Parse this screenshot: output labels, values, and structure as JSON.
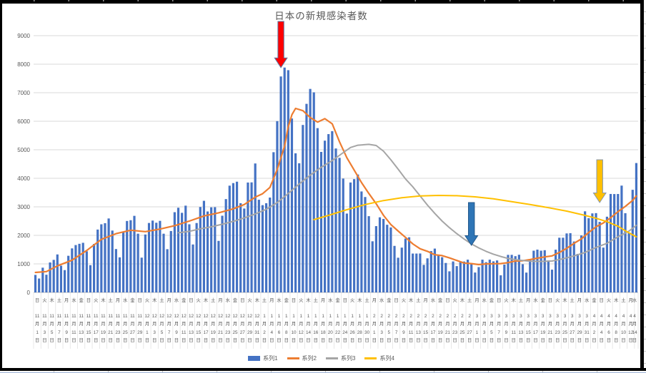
{
  "frame": {
    "border_color": "#000000",
    "bottom_rule_color": "#9db3d6"
  },
  "chart_data": {
    "type": "combo",
    "title": "日本の新規感染者数",
    "x": {
      "n_days": 165,
      "start": "2020-11-01",
      "end": "2021-04-14",
      "tick_every_days": 2,
      "month_suffix": "月",
      "day_suffix": "日",
      "tick_labels": [
        [
          "日",
          11,
          1
        ],
        [
          "火",
          11,
          3
        ],
        [
          "木",
          11,
          5
        ],
        [
          "土",
          11,
          7
        ],
        [
          "月",
          11,
          9
        ],
        [
          "水",
          11,
          11
        ],
        [
          "金",
          11,
          13
        ],
        [
          "日",
          11,
          15
        ],
        [
          "火",
          11,
          17
        ],
        [
          "木",
          11,
          19
        ],
        [
          "土",
          11,
          21
        ],
        [
          "月",
          11,
          23
        ],
        [
          "水",
          11,
          25
        ],
        [
          "金",
          11,
          27
        ],
        [
          "日",
          11,
          29
        ],
        [
          "火",
          12,
          1
        ],
        [
          "木",
          12,
          3
        ],
        [
          "土",
          12,
          5
        ],
        [
          "月",
          12,
          7
        ],
        [
          "水",
          12,
          9
        ],
        [
          "金",
          12,
          11
        ],
        [
          "日",
          12,
          13
        ],
        [
          "火",
          12,
          15
        ],
        [
          "木",
          12,
          17
        ],
        [
          "土",
          12,
          19
        ],
        [
          "月",
          12,
          21
        ],
        [
          "水",
          12,
          23
        ],
        [
          "金",
          12,
          25
        ],
        [
          "日",
          12,
          27
        ],
        [
          "火",
          12,
          29
        ],
        [
          "木",
          12,
          31
        ],
        [
          "土",
          1,
          2
        ],
        [
          "月",
          1,
          4
        ],
        [
          "水",
          1,
          6
        ],
        [
          "金",
          1,
          8
        ],
        [
          "日",
          1,
          10
        ],
        [
          "火",
          1,
          12
        ],
        [
          "木",
          1,
          14
        ],
        [
          "土",
          1,
          16
        ],
        [
          "月",
          1,
          18
        ],
        [
          "水",
          1,
          20
        ],
        [
          "金",
          1,
          22
        ],
        [
          "日",
          1,
          24
        ],
        [
          "火",
          1,
          26
        ],
        [
          "木",
          1,
          28
        ],
        [
          "土",
          1,
          30
        ],
        [
          "月",
          2,
          1
        ],
        [
          "水",
          2,
          3
        ],
        [
          "金",
          2,
          5
        ],
        [
          "日",
          2,
          7
        ],
        [
          "火",
          2,
          9
        ],
        [
          "木",
          2,
          11
        ],
        [
          "土",
          2,
          13
        ],
        [
          "月",
          2,
          15
        ],
        [
          "水",
          2,
          17
        ],
        [
          "金",
          2,
          19
        ],
        [
          "日",
          2,
          21
        ],
        [
          "火",
          2,
          23
        ],
        [
          "木",
          2,
          25
        ],
        [
          "土",
          2,
          27
        ],
        [
          "月",
          3,
          1
        ],
        [
          "水",
          3,
          3
        ],
        [
          "金",
          3,
          5
        ],
        [
          "日",
          3,
          7
        ],
        [
          "火",
          3,
          9
        ],
        [
          "木",
          3,
          11
        ],
        [
          "土",
          3,
          13
        ],
        [
          "月",
          3,
          15
        ],
        [
          "水",
          3,
          17
        ],
        [
          "金",
          3,
          19
        ],
        [
          "日",
          3,
          21
        ],
        [
          "火",
          3,
          23
        ],
        [
          "木",
          3,
          25
        ],
        [
          "土",
          3,
          27
        ],
        [
          "月",
          3,
          29
        ],
        [
          "水",
          3,
          31
        ],
        [
          "金",
          4,
          2
        ],
        [
          "日",
          4,
          4
        ],
        [
          "火",
          4,
          6
        ],
        [
          "木",
          4,
          8
        ],
        [
          "土",
          4,
          10
        ],
        [
          "月",
          4,
          12
        ],
        [
          "水",
          4,
          14
        ]
      ]
    },
    "y": {
      "min": 0,
      "max": 9000,
      "step": 1000,
      "tick_labels": [
        "0",
        "1000",
        "2000",
        "3000",
        "4000",
        "5000",
        "6000",
        "7000",
        "8000",
        "9000"
      ],
      "grid": true
    },
    "legend_position": "bottom",
    "series": [
      {
        "name": "系列1",
        "type": "bar",
        "color": "#4472C4",
        "values": [
          614,
          487,
          867,
          620,
          1050,
          1141,
          1331,
          936,
          782,
          1284,
          1543,
          1660,
          1704,
          1739,
          1441,
          955,
          1699,
          2203,
          2388,
          2427,
          2592,
          2168,
          1520,
          1229,
          2131,
          2504,
          2531,
          2684,
          2058,
          1219,
          2030,
          2434,
          2518,
          2442,
          2508,
          2058,
          1515,
          2152,
          2812,
          2968,
          2790,
          3041,
          2388,
          1680,
          2432,
          2994,
          3211,
          2837,
          2983,
          2988,
          1806,
          2688,
          3271,
          3742,
          3832,
          3881,
          3127,
          2941,
          3852,
          3857,
          4520,
          3248,
          3059,
          3127,
          3325,
          4915,
          6004,
          7570,
          7882,
          7790,
          6097,
          4876,
          4527,
          5870,
          6610,
          7133,
          7014,
          5759,
          4925,
          5320,
          5549,
          5653,
          5045,
          4717,
          3990,
          2764,
          3853,
          3971,
          4133,
          3539,
          3344,
          2673,
          1792,
          2324,
          2632,
          2576,
          2372,
          2277,
          1631,
          1216,
          1570,
          1887,
          1933,
          1362,
          1362,
          1364,
          965,
          1194,
          1448,
          1536,
          1301,
          1234,
          1032,
          739,
          1085,
          922,
          1076,
          1083,
          1148,
          999,
          697,
          888,
          1148,
          1059,
          1148,
          1089,
          1121,
          599,
          974,
          1316,
          1317,
          1271,
          1320,
          989,
          695,
          1133,
          1463,
          1500,
          1463,
          1480,
          1121,
          798,
          1498,
          1917,
          1917,
          2068,
          2077,
          1785,
          1351,
          1998,
          2843,
          2602,
          2770,
          2779,
          2472,
          1571,
          2654,
          3451,
          3448,
          3450,
          3744,
          2777,
          2091,
          3597,
          4535
        ]
      },
      {
        "name": "系列2",
        "type": "line",
        "color": "#ED7D31",
        "points": [
          [
            0,
            700
          ],
          [
            3,
            730
          ],
          [
            6,
            930
          ],
          [
            10,
            1130
          ],
          [
            14,
            1470
          ],
          [
            18,
            1860
          ],
          [
            22,
            2060
          ],
          [
            26,
            2180
          ],
          [
            30,
            2130
          ],
          [
            34,
            2220
          ],
          [
            38,
            2340
          ],
          [
            42,
            2500
          ],
          [
            46,
            2680
          ],
          [
            50,
            2790
          ],
          [
            54,
            2930
          ],
          [
            57,
            3080
          ],
          [
            60,
            3340
          ],
          [
            62,
            3460
          ],
          [
            64,
            3680
          ],
          [
            66,
            4310
          ],
          [
            68,
            5130
          ],
          [
            69,
            5800
          ],
          [
            70,
            6230
          ],
          [
            71,
            6450
          ],
          [
            73,
            6370
          ],
          [
            75,
            6130
          ],
          [
            77,
            5970
          ],
          [
            79,
            6090
          ],
          [
            81,
            5910
          ],
          [
            83,
            5280
          ],
          [
            85,
            4720
          ],
          [
            87,
            4290
          ],
          [
            89,
            3850
          ],
          [
            91,
            3470
          ],
          [
            93,
            3110
          ],
          [
            95,
            2700
          ],
          [
            97,
            2380
          ],
          [
            99,
            2150
          ],
          [
            101,
            1930
          ],
          [
            103,
            1700
          ],
          [
            105,
            1530
          ],
          [
            107,
            1440
          ],
          [
            109,
            1320
          ],
          [
            111,
            1290
          ],
          [
            113,
            1210
          ],
          [
            115,
            1120
          ],
          [
            117,
            1030
          ],
          [
            119,
            1010
          ],
          [
            121,
            975
          ],
          [
            123,
            1000
          ],
          [
            125,
            1005
          ],
          [
            127,
            1010
          ],
          [
            129,
            1045
          ],
          [
            131,
            1100
          ],
          [
            133,
            1110
          ],
          [
            135,
            1150
          ],
          [
            137,
            1200
          ],
          [
            139,
            1245
          ],
          [
            141,
            1280
          ],
          [
            143,
            1400
          ],
          [
            145,
            1545
          ],
          [
            147,
            1720
          ],
          [
            149,
            1875
          ],
          [
            151,
            2100
          ],
          [
            153,
            2300
          ],
          [
            155,
            2435
          ],
          [
            157,
            2615
          ],
          [
            159,
            2830
          ],
          [
            161,
            3015
          ],
          [
            163,
            3225
          ],
          [
            164,
            3380
          ]
        ]
      },
      {
        "name": "系列3",
        "type": "line",
        "color": "#A5A5A5",
        "points": [
          [
            39,
            2090
          ],
          [
            42,
            2140
          ],
          [
            45,
            2230
          ],
          [
            48,
            2300
          ],
          [
            51,
            2390
          ],
          [
            54,
            2490
          ],
          [
            57,
            2610
          ],
          [
            60,
            2750
          ],
          [
            63,
            2915
          ],
          [
            66,
            3150
          ],
          [
            69,
            3465
          ],
          [
            72,
            3800
          ],
          [
            75,
            4110
          ],
          [
            78,
            4385
          ],
          [
            81,
            4620
          ],
          [
            84,
            4900
          ],
          [
            86,
            5080
          ],
          [
            88,
            5160
          ],
          [
            91,
            5190
          ],
          [
            93,
            5150
          ],
          [
            95,
            4950
          ],
          [
            97,
            4650
          ],
          [
            99,
            4320
          ],
          [
            101,
            3980
          ],
          [
            103,
            3700
          ],
          [
            105,
            3380
          ],
          [
            107,
            3060
          ],
          [
            109,
            2770
          ],
          [
            111,
            2500
          ],
          [
            113,
            2270
          ],
          [
            115,
            2060
          ],
          [
            117,
            1870
          ],
          [
            119,
            1700
          ],
          [
            121,
            1560
          ],
          [
            123,
            1440
          ],
          [
            125,
            1340
          ],
          [
            127,
            1260
          ],
          [
            129,
            1190
          ],
          [
            131,
            1150
          ],
          [
            133,
            1120
          ],
          [
            135,
            1095
          ],
          [
            138,
            1085
          ],
          [
            141,
            1100
          ],
          [
            144,
            1180
          ],
          [
            147,
            1280
          ],
          [
            150,
            1400
          ],
          [
            153,
            1575
          ],
          [
            156,
            1720
          ],
          [
            159,
            1950
          ],
          [
            162,
            2150
          ],
          [
            164,
            2350
          ]
        ]
      },
      {
        "name": "系列4",
        "type": "line",
        "color": "#FFC000",
        "points": [
          [
            76,
            2550
          ],
          [
            80,
            2700
          ],
          [
            85,
            2900
          ],
          [
            90,
            3080
          ],
          [
            95,
            3220
          ],
          [
            100,
            3320
          ],
          [
            105,
            3380
          ],
          [
            110,
            3400
          ],
          [
            115,
            3390
          ],
          [
            120,
            3350
          ],
          [
            125,
            3280
          ],
          [
            130,
            3180
          ],
          [
            135,
            3080
          ],
          [
            140,
            2970
          ],
          [
            145,
            2850
          ],
          [
            150,
            2700
          ],
          [
            153,
            2600
          ],
          [
            156,
            2480
          ],
          [
            159,
            2320
          ],
          [
            161,
            2160
          ],
          [
            163,
            2020
          ],
          [
            164,
            1950
          ]
        ]
      }
    ],
    "annotations": [
      {
        "name": "red-arrow",
        "shape": "down-arrow",
        "fill": "#FF0000",
        "stroke": "#5B7CA8",
        "day": 67,
        "top_value": 9500,
        "tip_value": 7880
      },
      {
        "name": "blue-arrow",
        "shape": "down-arrow",
        "fill": "#2E75B6",
        "stroke": "#24598C",
        "day": 119,
        "top_value": 3150,
        "tip_value": 1650
      },
      {
        "name": "gold-arrow",
        "shape": "down-arrow",
        "fill": "#FFC000",
        "stroke": "#8496B0",
        "day": 154,
        "top_value": 4650,
        "tip_value": 3150
      }
    ],
    "colors": {
      "text": "#595959",
      "gridline": "#D9D9D9",
      "axis_line": "#BFBFBF",
      "category_separator": "#E2E2E2"
    }
  }
}
